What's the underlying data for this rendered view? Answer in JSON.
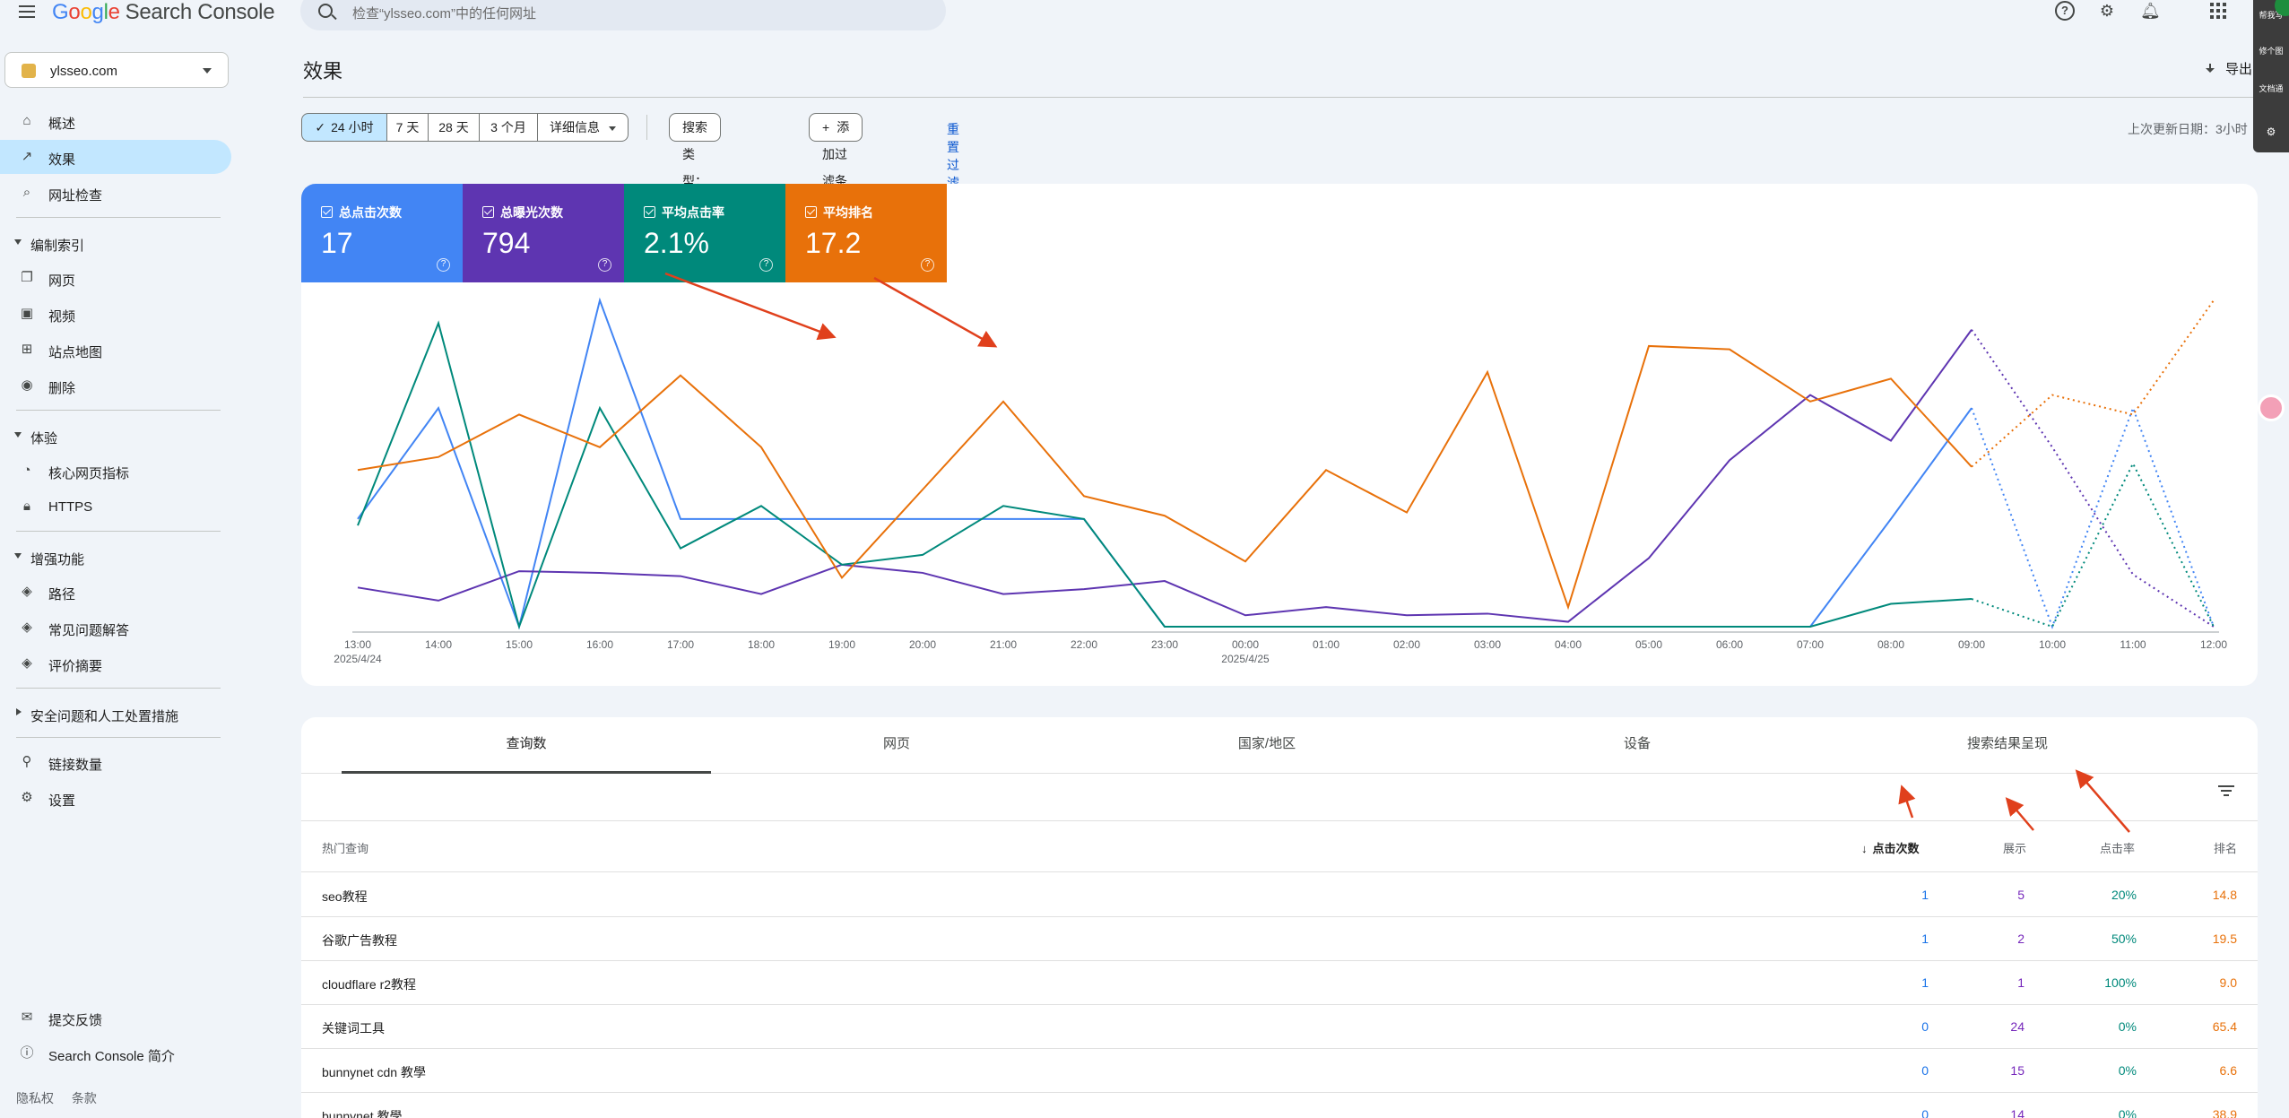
{
  "header": {
    "logo": {
      "g": "G",
      "o1": "o",
      "o2": "o",
      "g2": "g",
      "l": "l",
      "e": "e",
      "product": "Search Console"
    },
    "search_placeholder": "检查“ylsseo.com”中的任何网址"
  },
  "property": {
    "name": "ylsseo.com"
  },
  "sidebar": {
    "items": [
      {
        "label": "概述",
        "icon": "home-icon"
      },
      {
        "label": "效果",
        "icon": "trending-up-icon",
        "active": true
      },
      {
        "label": "网址检查",
        "icon": "search-icon"
      }
    ],
    "indexing": {
      "title": "编制索引",
      "items": [
        {
          "label": "网页",
          "icon": "pages-icon"
        },
        {
          "label": "视频",
          "icon": "video-icon"
        },
        {
          "label": "站点地图",
          "icon": "sitemap-icon"
        },
        {
          "label": "删除",
          "icon": "eye-off-icon"
        }
      ]
    },
    "experience": {
      "title": "体验",
      "items": [
        {
          "label": "核心网页指标",
          "icon": "gauge-icon"
        },
        {
          "label": "HTTPS",
          "icon": "lock-icon"
        }
      ]
    },
    "enhancements": {
      "title": "增强功能",
      "items": [
        {
          "label": "路径",
          "icon": "layers-icon"
        },
        {
          "label": "常见问题解答",
          "icon": "layers-icon"
        },
        {
          "label": "评价摘要",
          "icon": "layers-icon"
        }
      ]
    },
    "security": {
      "title": "安全问题和人工处置措施"
    },
    "links": {
      "label": "链接数量"
    },
    "settings": {
      "label": "设置"
    },
    "feedback": {
      "label": "提交反馈"
    },
    "about": {
      "label": "Search Console 简介"
    },
    "footer": {
      "privacy": "隐私权",
      "terms": "条款"
    }
  },
  "main": {
    "title": "效果",
    "export_label": "导出",
    "date_ranges": [
      "24 小时",
      "7 天",
      "28 天",
      "3 个月",
      "详细信息"
    ],
    "search_type": "搜索类型：网络",
    "add_filter": "添加过滤条件",
    "reset_filter": "重置过滤条件",
    "last_updated": "上次更新日期：3小时"
  },
  "metrics": [
    {
      "label": "总点击次数",
      "value": "17",
      "color": "#4285f4"
    },
    {
      "label": "总曝光次数",
      "value": "794",
      "color": "#5e35b1"
    },
    {
      "label": "平均点击率",
      "value": "2.1%",
      "color": "#00897b"
    },
    {
      "label": "平均排名",
      "value": "17.2",
      "color": "#e8710a"
    }
  ],
  "chart_data": {
    "type": "line",
    "x": [
      "13:00",
      "14:00",
      "15:00",
      "16:00",
      "17:00",
      "18:00",
      "19:00",
      "20:00",
      "21:00",
      "22:00",
      "23:00",
      "00:00",
      "01:00",
      "02:00",
      "03:00",
      "04:00",
      "05:00",
      "06:00",
      "07:00",
      "08:00",
      "09:00",
      "10:00",
      "11:00",
      "12:00"
    ],
    "date_labels": {
      "13:00": "2025/4/24",
      "00:00": "2025/4/25"
    },
    "solid_until_index": 20,
    "normalized": true,
    "series": [
      {
        "key": "clicks",
        "color": "#4285f4",
        "values": [
          0.33,
          0.67,
          0.0,
          1.0,
          0.33,
          0.33,
          0.33,
          0.33,
          0.33,
          0.33,
          0.0,
          0.0,
          0.0,
          0.0,
          0.0,
          0.0,
          0.0,
          0.0,
          0.0,
          0.33,
          0.67,
          0.0,
          0.67,
          0.0
        ]
      },
      {
        "key": "impressions",
        "color": "#5e35b1",
        "values": [
          0.12,
          0.08,
          0.17,
          0.165,
          0.155,
          0.1,
          0.19,
          0.165,
          0.1,
          0.115,
          0.14,
          0.035,
          0.06,
          0.035,
          0.04,
          0.015,
          0.21,
          0.51,
          0.71,
          0.57,
          0.91,
          0.55,
          0.16,
          0.0
        ]
      },
      {
        "key": "ctr",
        "color": "#00897b",
        "values": [
          0.31,
          0.93,
          0.0,
          0.67,
          0.24,
          0.37,
          0.19,
          0.22,
          0.37,
          0.33,
          0.0,
          0.0,
          0.0,
          0.0,
          0.0,
          0.0,
          0.0,
          0.0,
          0.0,
          0.07,
          0.085,
          0.0,
          0.5,
          0.0
        ]
      },
      {
        "key": "position",
        "color": "#e8710a",
        "values": [
          0.48,
          0.52,
          0.65,
          0.55,
          0.77,
          0.55,
          0.15,
          0.42,
          0.69,
          0.4,
          0.34,
          0.2,
          0.48,
          0.35,
          0.78,
          0.06,
          0.86,
          0.85,
          0.69,
          0.76,
          0.49,
          0.71,
          0.65,
          1.0
        ]
      }
    ],
    "ylim": [
      0,
      1
    ]
  },
  "table": {
    "tabs": [
      "查询数",
      "网页",
      "国家/地区",
      "设备",
      "搜索结果呈现"
    ],
    "columns": {
      "query": "热门查询",
      "clicks": "点击次数",
      "impressions": "展示",
      "ctr": "点击率",
      "position": "排名"
    },
    "rows": [
      {
        "query": "seo教程",
        "clicks": "1",
        "impressions": "5",
        "ctr": "20%",
        "position": "14.8"
      },
      {
        "query": "谷歌广告教程",
        "clicks": "1",
        "impressions": "2",
        "ctr": "50%",
        "position": "19.5"
      },
      {
        "query": "cloudflare r2教程",
        "clicks": "1",
        "impressions": "1",
        "ctr": "100%",
        "position": "9.0"
      },
      {
        "query": "关键词工具",
        "clicks": "0",
        "impressions": "24",
        "ctr": "0%",
        "position": "65.4"
      },
      {
        "query": "bunnynet cdn 教學",
        "clicks": "0",
        "impressions": "15",
        "ctr": "0%",
        "position": "6.6"
      },
      {
        "query": "bunnynet 教學",
        "clicks": "0",
        "impressions": "14",
        "ctr": "0%",
        "position": "38.9"
      }
    ]
  },
  "float_toolbar": {
    "items": [
      "帮我写",
      "修个图",
      "文档通"
    ]
  }
}
